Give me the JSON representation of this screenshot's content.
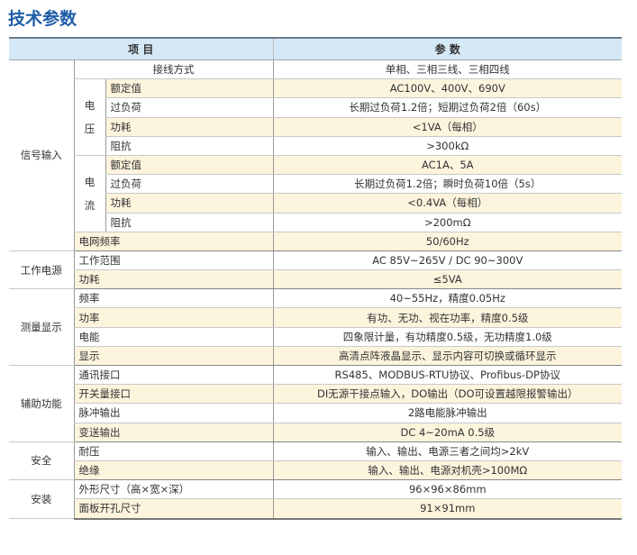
{
  "title": "技术参数",
  "header": {
    "item": "项 目",
    "param": "参 数"
  },
  "groups": [
    {
      "name": "信号输入"
    },
    {
      "name": "工作电源"
    },
    {
      "name": "测量显示"
    },
    {
      "name": "辅助功能"
    },
    {
      "name": "安全"
    },
    {
      "name": "安装"
    }
  ],
  "subgroups": {
    "voltage": "电\n压",
    "current": "电\n流"
  },
  "rows": [
    {
      "item": "接线方式",
      "value": "单相、三相三线、三相四线"
    },
    {
      "item": "额定值",
      "value": "AC100V、400V、690V"
    },
    {
      "item": "过负荷",
      "value": "长期过负荷1.2倍；短期过负荷2倍（60s）"
    },
    {
      "item": "功耗",
      "value": "<1VA（每相）"
    },
    {
      "item": "阻抗",
      "value": ">300kΩ"
    },
    {
      "item": "额定值",
      "value": "AC1A、5A"
    },
    {
      "item": "过负荷",
      "value": "长期过负荷1.2倍；瞬时负荷10倍（5s）"
    },
    {
      "item": "功耗",
      "value": "<0.4VA（每相）"
    },
    {
      "item": "阻抗",
      "value": ">200mΩ"
    },
    {
      "item": "电网频率",
      "value": "50/60Hz"
    },
    {
      "item": "工作范围",
      "value": "AC 85V~265V / DC 90~300V"
    },
    {
      "item": "功耗",
      "value": "≤5VA"
    },
    {
      "item": "频率",
      "value": "40~55Hz，精度0.05Hz"
    },
    {
      "item": "功率",
      "value": "有功、无功、视在功率，精度0.5级"
    },
    {
      "item": "电能",
      "value": "四象限计量，有功精度0.5级，无功精度1.0级"
    },
    {
      "item": "显示",
      "value": "高清点阵液晶显示、显示内容可切换或循环显示"
    },
    {
      "item": "通讯接口",
      "value": "RS485、MODBUS-RTU协议、Profibus-DP协议"
    },
    {
      "item": "开关量接口",
      "value": "DI无源干接点输入，DO输出（DO可设置越限报警输出）"
    },
    {
      "item": "脉冲输出",
      "value": "2路电能脉冲输出"
    },
    {
      "item": "变送输出",
      "value": "DC   4~20mA   0.5级"
    },
    {
      "item": "耐压",
      "value": "输入、输出、电源三者之间均>2kV"
    },
    {
      "item": "绝缘",
      "value": "输入、输出、电源对机壳>100MΩ"
    },
    {
      "item": "外形尺寸（高×宽×深）",
      "value": "96×96×86mm"
    },
    {
      "item": "面板开孔尺寸",
      "value": "91×91mm"
    }
  ],
  "colors": {
    "title": "#1d5ca8",
    "header_bg": "#d5e8f6",
    "stripe": "#fdf4dd"
  }
}
